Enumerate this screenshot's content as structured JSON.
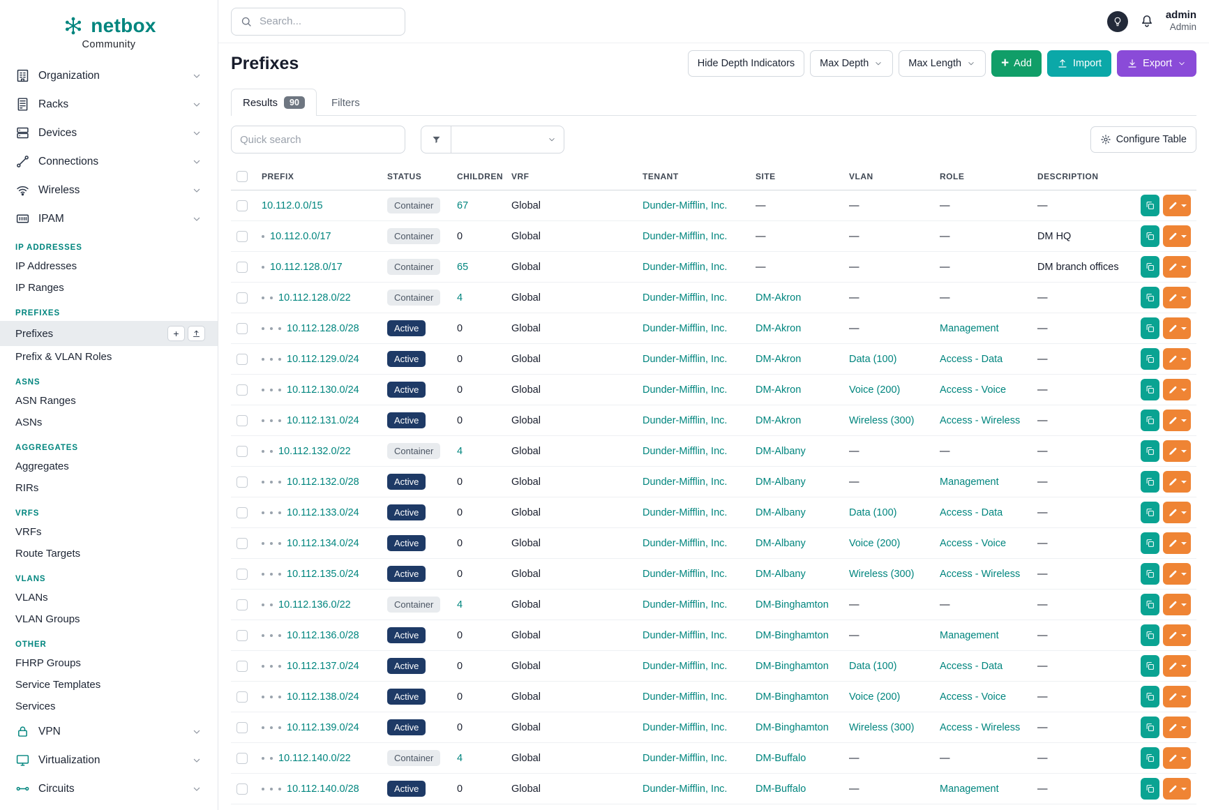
{
  "colors": {
    "teal": "#00857e",
    "green": "#109e68",
    "import-teal": "#0ba8a8",
    "export-purple": "#8a4bd8",
    "edit-orange": "#ef8434",
    "clone-teal": "#0aa392",
    "active-badge": "#1e3a66"
  },
  "brand": {
    "name": "netbox",
    "subtitle": "Community"
  },
  "topbar": {
    "search_placeholder": "Search...",
    "user_name": "admin",
    "user_role": "Admin"
  },
  "sidebar": {
    "top_items": [
      {
        "label": "Organization",
        "icon": "building-icon"
      },
      {
        "label": "Racks",
        "icon": "rack-icon"
      },
      {
        "label": "Devices",
        "icon": "device-icon"
      },
      {
        "label": "Connections",
        "icon": "connection-icon"
      },
      {
        "label": "Wireless",
        "icon": "wifi-icon"
      },
      {
        "label": "IPAM",
        "icon": "ipam-icon"
      }
    ],
    "sections": [
      {
        "header": "IP ADDRESSES",
        "items": [
          {
            "label": "IP Addresses"
          },
          {
            "label": "IP Ranges"
          }
        ]
      },
      {
        "header": "PREFIXES",
        "items": [
          {
            "label": "Prefixes",
            "active": true
          },
          {
            "label": "Prefix & VLAN Roles"
          }
        ]
      },
      {
        "header": "ASNS",
        "items": [
          {
            "label": "ASN Ranges"
          },
          {
            "label": "ASNs"
          }
        ]
      },
      {
        "header": "AGGREGATES",
        "items": [
          {
            "label": "Aggregates"
          },
          {
            "label": "RIRs"
          }
        ]
      },
      {
        "header": "VRFS",
        "items": [
          {
            "label": "VRFs"
          },
          {
            "label": "Route Targets"
          }
        ]
      },
      {
        "header": "VLANS",
        "items": [
          {
            "label": "VLANs"
          },
          {
            "label": "VLAN Groups"
          }
        ]
      },
      {
        "header": "OTHER",
        "items": [
          {
            "label": "FHRP Groups"
          },
          {
            "label": "Service Templates"
          },
          {
            "label": "Services"
          }
        ]
      }
    ],
    "bottom_items": [
      {
        "label": "VPN",
        "icon": "vpn-icon"
      },
      {
        "label": "Virtualization",
        "icon": "virtualization-icon"
      },
      {
        "label": "Circuits",
        "icon": "circuit-icon"
      }
    ],
    "active_quick_actions": [
      {
        "name": "add",
        "glyph": "+"
      },
      {
        "name": "import",
        "icon": "upload-icon"
      }
    ]
  },
  "page": {
    "title": "Prefixes",
    "buttons": {
      "hide_depth": "Hide Depth Indicators",
      "max_depth": "Max Depth",
      "max_length": "Max Length",
      "add": "Add",
      "import": "Import",
      "export": "Export"
    },
    "tabs": [
      {
        "label": "Results",
        "badge": "90"
      },
      {
        "label": "Filters"
      }
    ],
    "quick_search_placeholder": "Quick search",
    "configure_table": "Configure Table"
  },
  "table": {
    "columns": [
      "PREFIX",
      "STATUS",
      "CHILDREN",
      "VRF",
      "TENANT",
      "SITE",
      "VLAN",
      "ROLE",
      "DESCRIPTION"
    ],
    "rows": [
      {
        "depth": 0,
        "prefix": "10.112.0.0/15",
        "status": "Container",
        "children": "67",
        "vrf": "Global",
        "tenant": "Dunder-Mifflin, Inc.",
        "site": "—",
        "vlan": "—",
        "role": "—",
        "description": "—"
      },
      {
        "depth": 1,
        "prefix": "10.112.0.0/17",
        "status": "Container",
        "children": "0",
        "vrf": "Global",
        "tenant": "Dunder-Mifflin, Inc.",
        "site": "—",
        "vlan": "—",
        "role": "—",
        "description": "DM HQ"
      },
      {
        "depth": 1,
        "prefix": "10.112.128.0/17",
        "status": "Container",
        "children": "65",
        "vrf": "Global",
        "tenant": "Dunder-Mifflin, Inc.",
        "site": "—",
        "vlan": "—",
        "role": "—",
        "description": "DM branch offices"
      },
      {
        "depth": 2,
        "prefix": "10.112.128.0/22",
        "status": "Container",
        "children": "4",
        "vrf": "Global",
        "tenant": "Dunder-Mifflin, Inc.",
        "site": "DM-Akron",
        "vlan": "—",
        "role": "—",
        "description": "—"
      },
      {
        "depth": 3,
        "prefix": "10.112.128.0/28",
        "status": "Active",
        "children": "0",
        "vrf": "Global",
        "tenant": "Dunder-Mifflin, Inc.",
        "site": "DM-Akron",
        "vlan": "—",
        "role": "Management",
        "description": "—"
      },
      {
        "depth": 3,
        "prefix": "10.112.129.0/24",
        "status": "Active",
        "children": "0",
        "vrf": "Global",
        "tenant": "Dunder-Mifflin, Inc.",
        "site": "DM-Akron",
        "vlan": "Data (100)",
        "role": "Access - Data",
        "description": "—"
      },
      {
        "depth": 3,
        "prefix": "10.112.130.0/24",
        "status": "Active",
        "children": "0",
        "vrf": "Global",
        "tenant": "Dunder-Mifflin, Inc.",
        "site": "DM-Akron",
        "vlan": "Voice (200)",
        "role": "Access - Voice",
        "description": "—"
      },
      {
        "depth": 3,
        "prefix": "10.112.131.0/24",
        "status": "Active",
        "children": "0",
        "vrf": "Global",
        "tenant": "Dunder-Mifflin, Inc.",
        "site": "DM-Akron",
        "vlan": "Wireless (300)",
        "role": "Access - Wireless",
        "description": "—"
      },
      {
        "depth": 2,
        "prefix": "10.112.132.0/22",
        "status": "Container",
        "children": "4",
        "vrf": "Global",
        "tenant": "Dunder-Mifflin, Inc.",
        "site": "DM-Albany",
        "vlan": "—",
        "role": "—",
        "description": "—"
      },
      {
        "depth": 3,
        "prefix": "10.112.132.0/28",
        "status": "Active",
        "children": "0",
        "vrf": "Global",
        "tenant": "Dunder-Mifflin, Inc.",
        "site": "DM-Albany",
        "vlan": "—",
        "role": "Management",
        "description": "—"
      },
      {
        "depth": 3,
        "prefix": "10.112.133.0/24",
        "status": "Active",
        "children": "0",
        "vrf": "Global",
        "tenant": "Dunder-Mifflin, Inc.",
        "site": "DM-Albany",
        "vlan": "Data (100)",
        "role": "Access - Data",
        "description": "—"
      },
      {
        "depth": 3,
        "prefix": "10.112.134.0/24",
        "status": "Active",
        "children": "0",
        "vrf": "Global",
        "tenant": "Dunder-Mifflin, Inc.",
        "site": "DM-Albany",
        "vlan": "Voice (200)",
        "role": "Access - Voice",
        "description": "—"
      },
      {
        "depth": 3,
        "prefix": "10.112.135.0/24",
        "status": "Active",
        "children": "0",
        "vrf": "Global",
        "tenant": "Dunder-Mifflin, Inc.",
        "site": "DM-Albany",
        "vlan": "Wireless (300)",
        "role": "Access - Wireless",
        "description": "—"
      },
      {
        "depth": 2,
        "prefix": "10.112.136.0/22",
        "status": "Container",
        "children": "4",
        "vrf": "Global",
        "tenant": "Dunder-Mifflin, Inc.",
        "site": "DM-Binghamton",
        "vlan": "—",
        "role": "—",
        "description": "—"
      },
      {
        "depth": 3,
        "prefix": "10.112.136.0/28",
        "status": "Active",
        "children": "0",
        "vrf": "Global",
        "tenant": "Dunder-Mifflin, Inc.",
        "site": "DM-Binghamton",
        "vlan": "—",
        "role": "Management",
        "description": "—"
      },
      {
        "depth": 3,
        "prefix": "10.112.137.0/24",
        "status": "Active",
        "children": "0",
        "vrf": "Global",
        "tenant": "Dunder-Mifflin, Inc.",
        "site": "DM-Binghamton",
        "vlan": "Data (100)",
        "role": "Access - Data",
        "description": "—"
      },
      {
        "depth": 3,
        "prefix": "10.112.138.0/24",
        "status": "Active",
        "children": "0",
        "vrf": "Global",
        "tenant": "Dunder-Mifflin, Inc.",
        "site": "DM-Binghamton",
        "vlan": "Voice (200)",
        "role": "Access - Voice",
        "description": "—"
      },
      {
        "depth": 3,
        "prefix": "10.112.139.0/24",
        "status": "Active",
        "children": "0",
        "vrf": "Global",
        "tenant": "Dunder-Mifflin, Inc.",
        "site": "DM-Binghamton",
        "vlan": "Wireless (300)",
        "role": "Access - Wireless",
        "description": "—"
      },
      {
        "depth": 2,
        "prefix": "10.112.140.0/22",
        "status": "Container",
        "children": "4",
        "vrf": "Global",
        "tenant": "Dunder-Mifflin, Inc.",
        "site": "DM-Buffalo",
        "vlan": "—",
        "role": "—",
        "description": "—"
      },
      {
        "depth": 3,
        "prefix": "10.112.140.0/28",
        "status": "Active",
        "children": "0",
        "vrf": "Global",
        "tenant": "Dunder-Mifflin, Inc.",
        "site": "DM-Buffalo",
        "vlan": "—",
        "role": "Management",
        "description": "—"
      }
    ]
  }
}
